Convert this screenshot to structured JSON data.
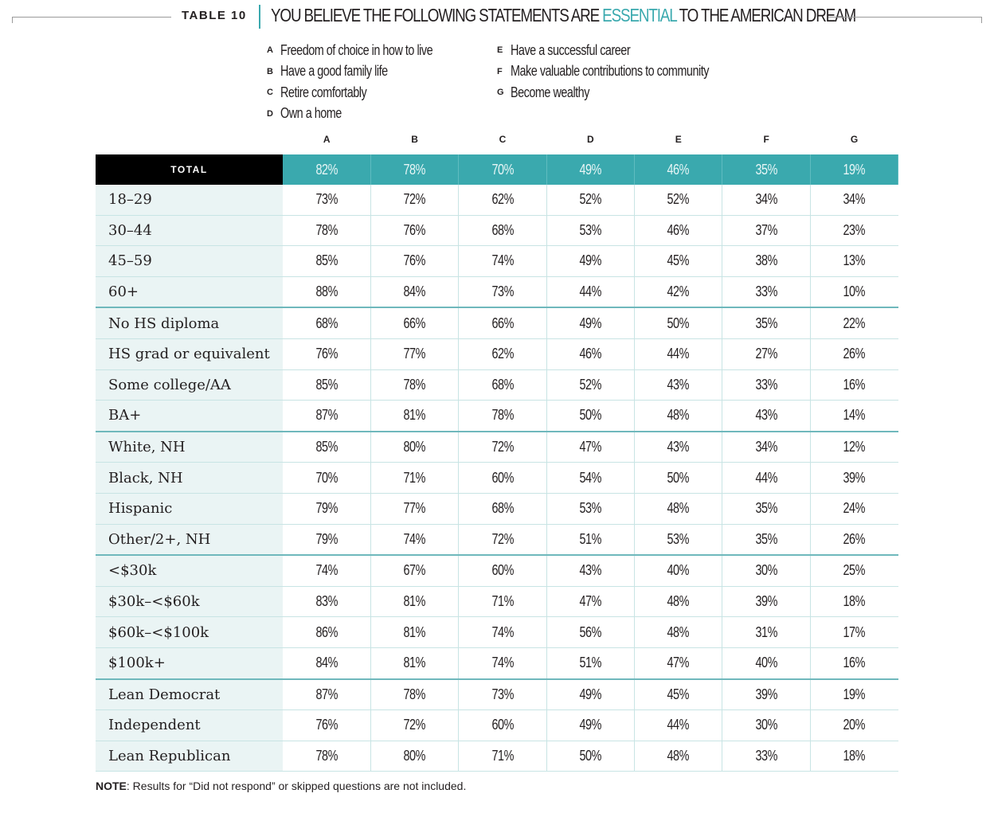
{
  "table_label": "TABLE 10",
  "title_before": "YOU BELIEVE THE FOLLOWING STATEMENTS ARE ",
  "title_accent": "ESSENTIAL",
  "title_after": " TO THE AMERICAN DREAM",
  "colors": {
    "accent": "#3aa9ae",
    "total_label_bg": "#000000",
    "row_label_bg": "#eaf4f4"
  },
  "legend_left": [
    {
      "letter": "A",
      "text": "Freedom of choice in how to live"
    },
    {
      "letter": "B",
      "text": "Have a good family life"
    },
    {
      "letter": "C",
      "text": "Retire comfortably"
    },
    {
      "letter": "D",
      "text": "Own a home"
    }
  ],
  "legend_right": [
    {
      "letter": "E",
      "text": "Have a successful career"
    },
    {
      "letter": "F",
      "text": "Make valuable contributions to community"
    },
    {
      "letter": "G",
      "text": "Become wealthy"
    }
  ],
  "note_label": "NOTE",
  "note_text": ": Results for “Did not respond” or skipped questions are not included.",
  "chart_data": {
    "type": "table",
    "columns": [
      "A",
      "B",
      "C",
      "D",
      "E",
      "F",
      "G"
    ],
    "total": {
      "label": "TOTAL",
      "values": [
        "82%",
        "78%",
        "70%",
        "49%",
        "46%",
        "35%",
        "19%"
      ]
    },
    "rows": [
      {
        "label": "18–29",
        "values": [
          "73%",
          "72%",
          "62%",
          "52%",
          "52%",
          "34%",
          "34%"
        ]
      },
      {
        "label": "30–44",
        "values": [
          "78%",
          "76%",
          "68%",
          "53%",
          "46%",
          "37%",
          "23%"
        ]
      },
      {
        "label": "45–59",
        "values": [
          "85%",
          "76%",
          "74%",
          "49%",
          "45%",
          "38%",
          "13%"
        ]
      },
      {
        "label": "60+",
        "values": [
          "88%",
          "84%",
          "73%",
          "44%",
          "42%",
          "33%",
          "10%"
        ],
        "group_end": true
      },
      {
        "label": "No HS diploma",
        "values": [
          "68%",
          "66%",
          "66%",
          "49%",
          "50%",
          "35%",
          "22%"
        ]
      },
      {
        "label": "HS grad or equivalent",
        "values": [
          "76%",
          "77%",
          "62%",
          "46%",
          "44%",
          "27%",
          "26%"
        ]
      },
      {
        "label": "Some college/AA",
        "values": [
          "85%",
          "78%",
          "68%",
          "52%",
          "43%",
          "33%",
          "16%"
        ]
      },
      {
        "label": "BA+",
        "values": [
          "87%",
          "81%",
          "78%",
          "50%",
          "48%",
          "43%",
          "14%"
        ],
        "group_end": true
      },
      {
        "label": "White, NH",
        "values": [
          "85%",
          "80%",
          "72%",
          "47%",
          "43%",
          "34%",
          "12%"
        ]
      },
      {
        "label": "Black, NH",
        "values": [
          "70%",
          "71%",
          "60%",
          "54%",
          "50%",
          "44%",
          "39%"
        ]
      },
      {
        "label": "Hispanic",
        "values": [
          "79%",
          "77%",
          "68%",
          "53%",
          "48%",
          "35%",
          "24%"
        ]
      },
      {
        "label": "Other/2+, NH",
        "values": [
          "79%",
          "74%",
          "72%",
          "51%",
          "53%",
          "35%",
          "26%"
        ],
        "group_end": true
      },
      {
        "label": "<$30k",
        "values": [
          "74%",
          "67%",
          "60%",
          "43%",
          "40%",
          "30%",
          "25%"
        ]
      },
      {
        "label": "$30k–<$60k",
        "values": [
          "83%",
          "81%",
          "71%",
          "47%",
          "48%",
          "39%",
          "18%"
        ]
      },
      {
        "label": "$60k–<$100k",
        "values": [
          "86%",
          "81%",
          "74%",
          "56%",
          "48%",
          "31%",
          "17%"
        ]
      },
      {
        "label": "$100k+",
        "values": [
          "84%",
          "81%",
          "74%",
          "51%",
          "47%",
          "40%",
          "16%"
        ],
        "group_end": true
      },
      {
        "label": "Lean Democrat",
        "values": [
          "87%",
          "78%",
          "73%",
          "49%",
          "45%",
          "39%",
          "19%"
        ]
      },
      {
        "label": "Independent",
        "values": [
          "76%",
          "72%",
          "60%",
          "49%",
          "44%",
          "30%",
          "20%"
        ]
      },
      {
        "label": "Lean Republican",
        "values": [
          "78%",
          "80%",
          "71%",
          "50%",
          "48%",
          "33%",
          "18%"
        ]
      }
    ]
  }
}
